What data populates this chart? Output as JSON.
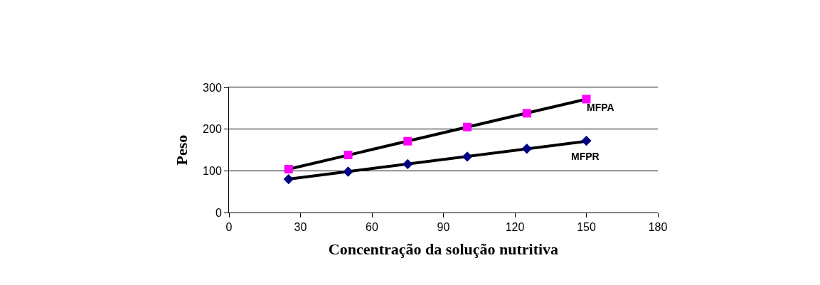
{
  "chart_data": {
    "type": "scatter",
    "xlabel": "Concentração da solução nutritiva",
    "ylabel": "Peso",
    "xlim": [
      0,
      180
    ],
    "xticks": [
      0,
      30,
      60,
      90,
      120,
      150,
      180
    ],
    "ylim": [
      0,
      300
    ],
    "yticks": [
      0,
      100,
      200,
      300
    ],
    "grid": "y",
    "series": [
      {
        "name": "MFPA",
        "color": "#ff00ff",
        "marker": "square",
        "x": [
          25,
          50,
          75,
          100,
          125,
          150
        ],
        "values": [
          104,
          138,
          171,
          205,
          238,
          272
        ]
      },
      {
        "name": "MFPR",
        "color": "#000080",
        "marker": "diamond",
        "x": [
          25,
          50,
          75,
          100,
          125,
          150
        ],
        "values": [
          80,
          98,
          116,
          134,
          153,
          172
        ]
      },
      {
        "type": "line",
        "color": "#000000",
        "marker": "none",
        "x": [
          25,
          150
        ],
        "values": [
          104,
          272
        ]
      },
      {
        "type": "line",
        "color": "#000000",
        "marker": "none",
        "x": [
          25,
          150
        ],
        "values": [
          80,
          171
        ]
      }
    ]
  }
}
